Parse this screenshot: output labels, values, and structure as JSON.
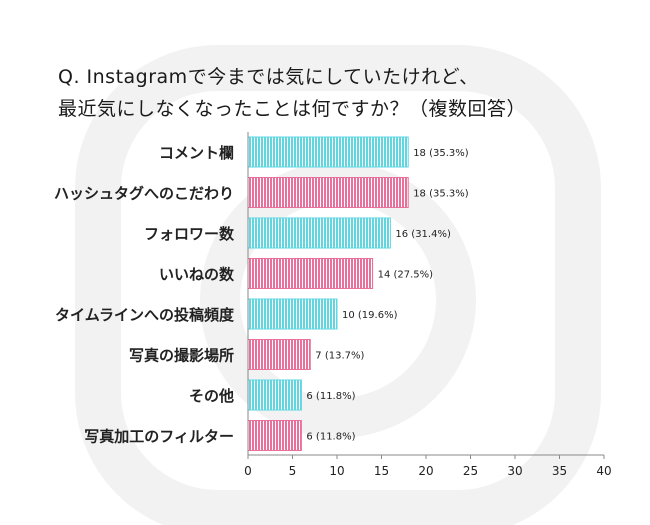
{
  "title": {
    "line1": "Q. Instagramで今までは気にしていたけれど、",
    "line2": "最近気にしなくなったことは何ですか？（複数回答）"
  },
  "colors": {
    "cyan": "#5fd6e0",
    "pink": "#e8709a",
    "watermark": "#f2f2f2"
  },
  "chart_data": {
    "type": "bar",
    "orientation": "horizontal",
    "title": "Q. Instagramで今までは気にしていたけれど、最近気にしなくなったことは何ですか？（複数回答）",
    "categories": [
      "コメント欄",
      "ハッシュタグへのこだわり",
      "フォロワー数",
      "いいねの数",
      "タイムラインへの投稿頻度",
      "写真の撮影場所",
      "その他",
      "写真加工のフィルター"
    ],
    "values": [
      18,
      18,
      16,
      14,
      10,
      7,
      6,
      6
    ],
    "data_labels": [
      "18 (35.3%)",
      "18 (35.3%)",
      "16 (31.4%)",
      "14 (27.5%)",
      "10 (19.6%)",
      "7 (13.7%)",
      "6 (11.8%)",
      "6 (11.8%)"
    ],
    "bar_colors": [
      "cyan",
      "pink",
      "cyan",
      "pink",
      "cyan",
      "pink",
      "cyan",
      "pink"
    ],
    "xlim": [
      0,
      40
    ],
    "xticks": [
      "0",
      "5",
      "10",
      "15",
      "20",
      "25",
      "30",
      "35",
      "40"
    ],
    "xtick_values": [
      0,
      5,
      10,
      15,
      20,
      25,
      30,
      35,
      40
    ],
    "grid": false,
    "legend": "none"
  }
}
